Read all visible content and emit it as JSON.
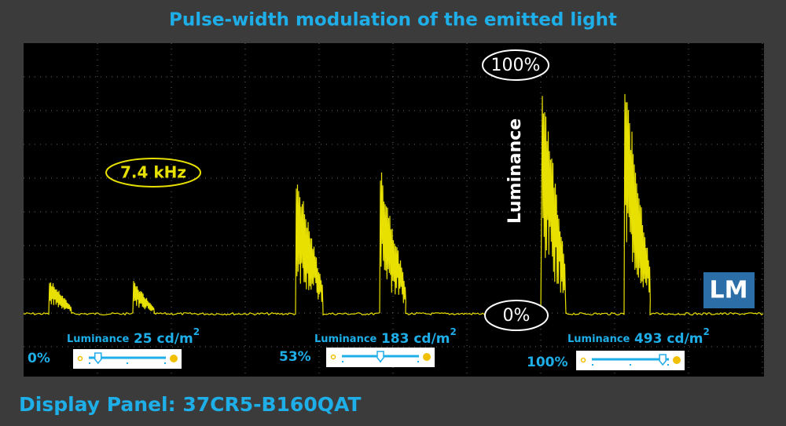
{
  "title": "Pulse-width modulation of the emitted light",
  "annotations": {
    "frequency": "7.4  kHz",
    "max_label": "100%",
    "min_label": "0%",
    "axis_label": "Luminance",
    "logo": "LM"
  },
  "panels": [
    {
      "label": "Luminance",
      "value": "25 cd/m",
      "superscript": "2",
      "brightness": "0%"
    },
    {
      "label": "Luminance",
      "value": "183 cd/m",
      "superscript": "2",
      "brightness": "53%"
    },
    {
      "label": "Luminance",
      "value": "493 cd/m",
      "superscript": "2",
      "brightness": "100%"
    }
  ],
  "footer": "Display Panel: 37CR5-B160QAT"
}
